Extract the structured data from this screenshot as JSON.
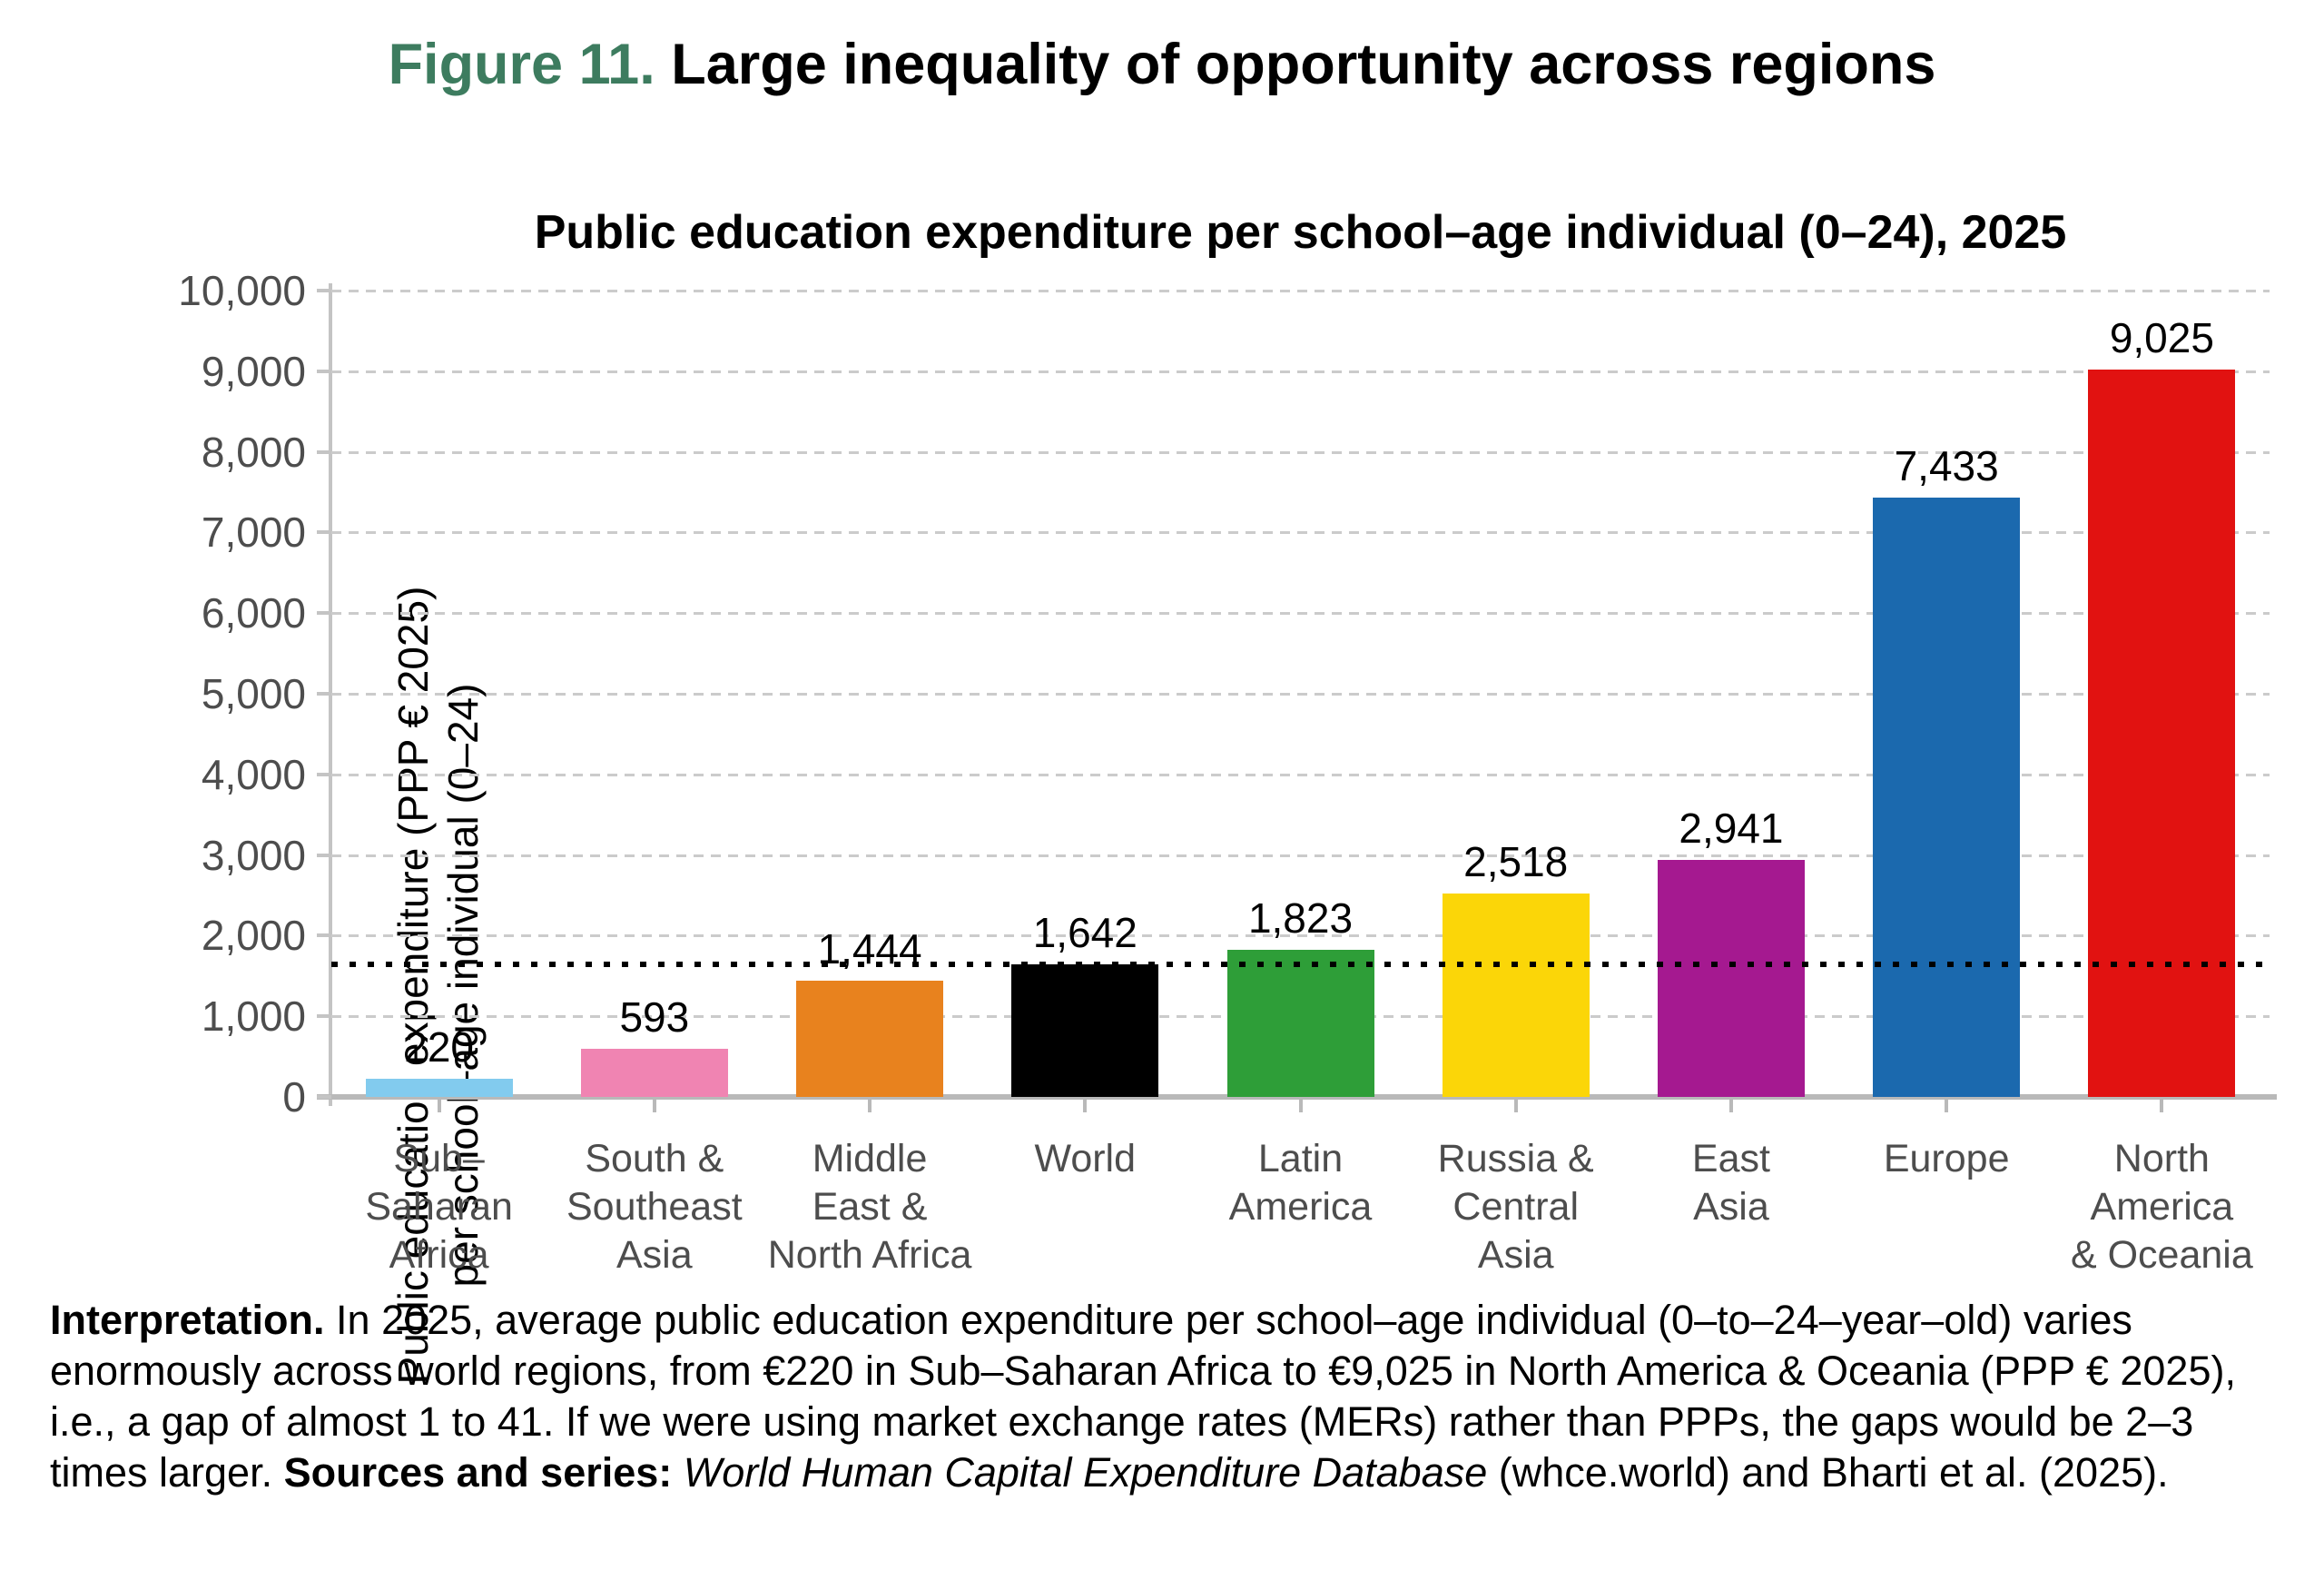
{
  "figure": {
    "label": "Figure 11.",
    "title": " Large inequality of opportunity across regions"
  },
  "chart_data": {
    "type": "bar",
    "title": "Public education expenditure per school–age individual (0–24), 2025",
    "ylabel_lines": [
      "Public education expenditure (PPP € 2025)",
      "per school–age individual (0–24)"
    ],
    "categories": [
      "Sub–Saharan Africa",
      "South & Southeast Asia",
      "Middle East & North Africa",
      "World",
      "Latin America",
      "Russia & Central Asia",
      "East Asia",
      "Europe",
      "North America & Oceania"
    ],
    "category_tick_lines": [
      [
        "Sub–",
        "Saharan",
        "Africa"
      ],
      [
        "South &",
        "Southeast",
        "Asia"
      ],
      [
        "Middle",
        "East &",
        "North Africa"
      ],
      [
        "World"
      ],
      [
        "Latin",
        "America"
      ],
      [
        "Russia &",
        "Central",
        "Asia"
      ],
      [
        "East",
        "Asia"
      ],
      [
        "Europe"
      ],
      [
        "North",
        "America",
        "& Oceania"
      ]
    ],
    "values": [
      220,
      593,
      1444,
      1642,
      1823,
      2518,
      2941,
      7433,
      9025
    ],
    "value_labels": [
      "220",
      "593",
      "1,444",
      "1,642",
      "1,823",
      "2,518",
      "2,941",
      "7,433",
      "9,025"
    ],
    "bar_colors": [
      "#82CBEE",
      "#F084B2",
      "#E8821E",
      "#000000",
      "#2E9E38",
      "#FBD608",
      "#A51990",
      "#1B69AE",
      "#E11211"
    ],
    "ylim": [
      0,
      10000
    ],
    "ytick_step": 1000,
    "ytick_labels": [
      "0",
      "1,000",
      "2,000",
      "3,000",
      "4,000",
      "5,000",
      "6,000",
      "7,000",
      "8,000",
      "9,000",
      "10,000"
    ],
    "reference_line": {
      "value": 1642,
      "style": "dotted",
      "color": "#000000"
    },
    "grid": "horizontal-dashed",
    "legend_position": "none"
  },
  "interpretation": {
    "lead_bold": "Interpretation.",
    "body": " In 2025, average public education expenditure per school–age individual (0–to–24–year–old) varies enormously across world regions, from €220 in Sub–Saharan Africa to €9,025 in North America & Oceania (PPP € 2025), i.e., a gap of almost 1 to 41. If we were using market exchange rates (MERs) rather than PPPs, the gaps would be 2–3 times larger. ",
    "sources_bold": "Sources and series:",
    "source_italic": " World Human Capital Expenditure Database",
    "tail": " (whce.world) and Bharti et al. (2025)."
  },
  "colors": {
    "figure_label": "#3D7C5F",
    "axis_text": "#4D4D4D",
    "gridline": "#CBCBCB",
    "y_axis_line": "#C4C4C4",
    "x_axis_line": "#B9B9B9"
  }
}
